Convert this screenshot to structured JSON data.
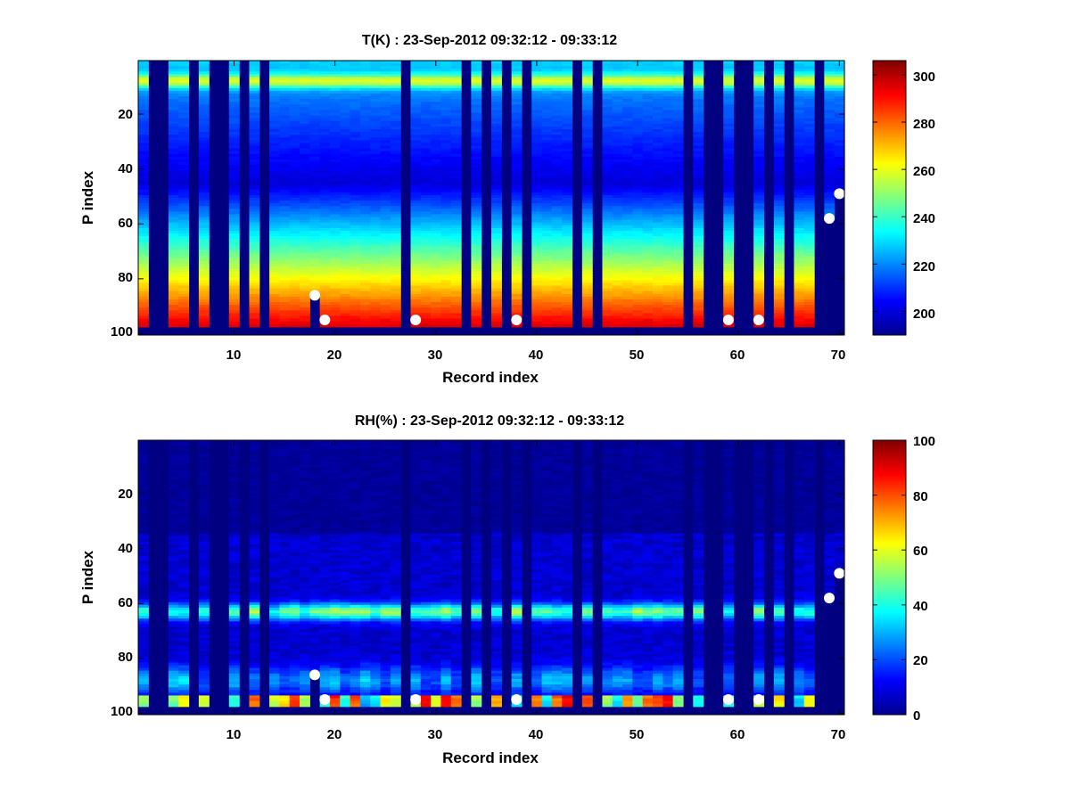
{
  "chart_data": [
    {
      "type": "heatmap",
      "title": "T(K) : 23-Sep-2012 09:32:12 - 09:33:12",
      "xlabel": "Record index",
      "ylabel": "P index",
      "xlim": [
        0.5,
        70.5
      ],
      "ylim": [
        100.5,
        0.5
      ],
      "y_reversed": true,
      "xticks": [
        "10",
        "20",
        "30",
        "40",
        "50",
        "60",
        "70"
      ],
      "yticks": [
        "20",
        "40",
        "60",
        "80",
        "100"
      ],
      "colorbar": {
        "min": 190,
        "max": 306,
        "ticks": [
          "200",
          "220",
          "240",
          "260",
          "280",
          "300"
        ],
        "colormap": "jet"
      },
      "profile": {
        "top_value": 230,
        "min_value": 200,
        "min_at_index": 45,
        "bottom_value": 295,
        "surface_index": 97,
        "warm_band_index": 8,
        "warm_band_value": 265
      },
      "gap_records": [
        2,
        3,
        6,
        8,
        9,
        11,
        13,
        27,
        33,
        35,
        37,
        39,
        44,
        46,
        55,
        57,
        58,
        60,
        61,
        63,
        65,
        68
      ],
      "markers": [
        {
          "record": 18,
          "p_index": 86
        },
        {
          "record": 19,
          "p_index": 95
        },
        {
          "record": 28,
          "p_index": 95
        },
        {
          "record": 38,
          "p_index": 95
        },
        {
          "record": 59,
          "p_index": 95
        },
        {
          "record": 62,
          "p_index": 95
        },
        {
          "record": 69,
          "p_index": 58
        },
        {
          "record": 70,
          "p_index": 49
        }
      ]
    },
    {
      "type": "heatmap",
      "title": "RH(%) : 23-Sep-2012 09:32:12 - 09:33:12",
      "xlabel": "Record index",
      "ylabel": "P index",
      "xlim": [
        0.5,
        70.5
      ],
      "ylim": [
        100.5,
        0.5
      ],
      "y_reversed": true,
      "xticks": [
        "10",
        "20",
        "30",
        "40",
        "50",
        "60",
        "70"
      ],
      "yticks": [
        "20",
        "40",
        "60",
        "80",
        "100"
      ],
      "colorbar": {
        "min": 0,
        "max": 100,
        "ticks": [
          "0",
          "20",
          "40",
          "60",
          "80",
          "100"
        ],
        "colormap": "jet"
      },
      "profile": {
        "dry_above_index": 35,
        "moist_band_index": 63,
        "moist_band_value": 50,
        "low_level_index": 88,
        "low_level_value": 30,
        "surface_index": 96,
        "surface_value": 85
      },
      "gap_records": [
        2,
        3,
        6,
        8,
        9,
        11,
        13,
        27,
        33,
        35,
        37,
        39,
        44,
        46,
        55,
        57,
        58,
        60,
        61,
        63,
        65,
        68
      ],
      "markers": [
        {
          "record": 18,
          "p_index": 86
        },
        {
          "record": 19,
          "p_index": 95
        },
        {
          "record": 28,
          "p_index": 95
        },
        {
          "record": 38,
          "p_index": 95
        },
        {
          "record": 59,
          "p_index": 95
        },
        {
          "record": 62,
          "p_index": 95
        },
        {
          "record": 69,
          "p_index": 58
        },
        {
          "record": 70,
          "p_index": 49
        }
      ]
    }
  ]
}
